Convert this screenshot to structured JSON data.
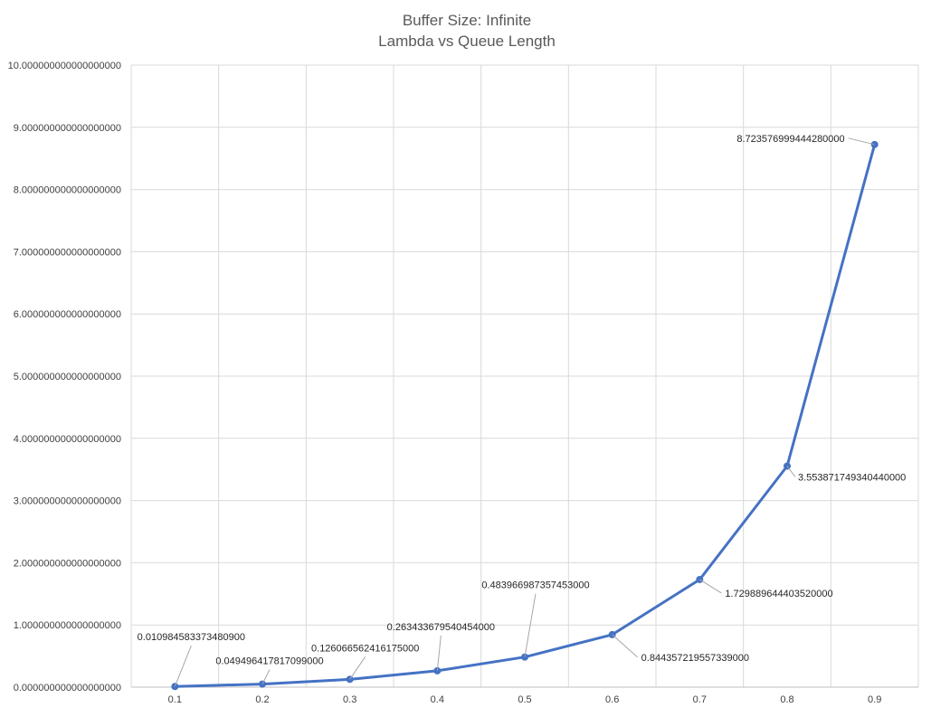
{
  "chart_data": {
    "type": "line",
    "title": "Buffer Size: Infinite",
    "subtitle": "Lambda vs Queue Length",
    "xlabel": "",
    "ylabel": "",
    "categories": [
      "0.1",
      "0.2",
      "0.3",
      "0.4",
      "0.5",
      "0.6",
      "0.7",
      "0.8",
      "0.9"
    ],
    "series": [
      {
        "values": [
          0.0109845833734809,
          0.049496417817099,
          0.126066562416175,
          0.263433679540454,
          0.483966987357453,
          0.844357219557339,
          1.72988964440352,
          3.55387174934044,
          8.72357699944428
        ],
        "color": "#4472C4"
      }
    ],
    "data_labels": [
      "0.010984583373480900",
      "0.049496417817099000",
      "0.126066562416175000",
      "0.263433679540454000",
      "0.483966987357453000",
      "0.844357219557339000",
      "1.729889644403520000",
      "3.553871749340440000",
      "8.723576999444280000"
    ],
    "ylim": [
      0,
      10
    ],
    "y_ticks": [
      0,
      1,
      2,
      3,
      4,
      5,
      6,
      7,
      8,
      9,
      10
    ],
    "y_tick_labels": [
      "0.000000000000000000",
      "1.000000000000000000",
      "2.000000000000000000",
      "3.000000000000000000",
      "4.000000000000000000",
      "5.000000000000000000",
      "6.000000000000000000",
      "7.000000000000000000",
      "8.000000000000000000",
      "9.000000000000000000",
      "10.000000000000000000"
    ],
    "grid": true,
    "gridline_color": "#D9D9D9",
    "legend": "none"
  }
}
